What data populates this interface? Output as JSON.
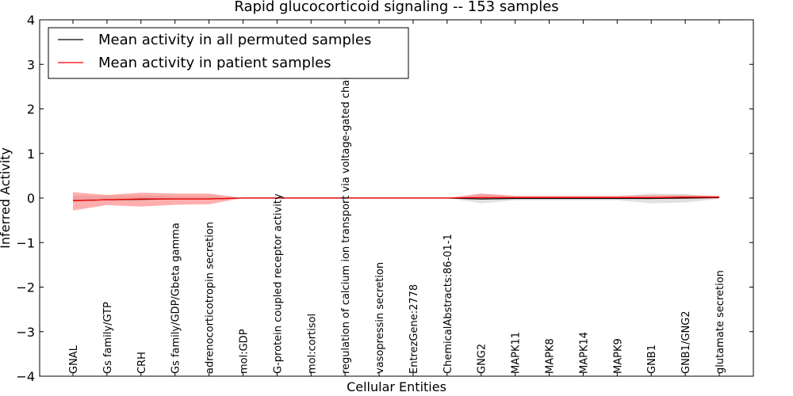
{
  "chart_data": {
    "type": "line",
    "title": "Rapid glucocorticoid signaling -- 153 samples",
    "xlabel": "Cellular Entities",
    "ylabel": "Inferred Activity",
    "ylim": [
      -4,
      4
    ],
    "yticks": [
      "−4",
      "−3",
      "−2",
      "−1",
      "0",
      "1",
      "2",
      "3",
      "4"
    ],
    "ytick_values": [
      -4,
      -3,
      -2,
      -1,
      0,
      1,
      2,
      3,
      4
    ],
    "grid": false,
    "legend_position": "top-left",
    "categories": [
      "GNAL",
      "Gs family/GTP",
      "CRH",
      "Gs family/GDP/Gbeta gamma",
      "adrenocorticotropin secretion",
      "mol:GDP",
      "G-protein coupled receptor activity",
      "mol:cortisol",
      "regulation of calcium ion transport via voltage-gated channel",
      "vasopressin secretion",
      "EntrezGene:2778",
      "ChemicalAbstracts:86-01-1",
      "GNG2",
      "MAPK11",
      "MAPK8",
      "MAPK14",
      "MAPK9",
      "GNB1",
      "GNB1/GNG2",
      "glutamate secretion"
    ],
    "series": [
      {
        "name": "Mean activity in all permuted samples",
        "color": "#000000",
        "values": [
          -0.06,
          -0.04,
          -0.03,
          -0.02,
          -0.02,
          0,
          0,
          0,
          0,
          0,
          0,
          0,
          -0.02,
          -0.01,
          -0.01,
          -0.01,
          -0.01,
          -0.01,
          0,
          0.01
        ],
        "band_lower": [
          -0.08,
          -0.05,
          -0.04,
          -0.03,
          -0.02,
          0,
          0,
          0,
          0,
          0,
          0,
          0,
          -0.12,
          -0.05,
          -0.05,
          -0.05,
          -0.05,
          -0.12,
          -0.1,
          -0.02
        ],
        "band_upper": [
          0.05,
          0.05,
          0.06,
          0.04,
          0.04,
          0,
          0,
          0,
          0,
          0,
          0,
          0,
          0.08,
          0.04,
          0.04,
          0.04,
          0.04,
          0.1,
          0.09,
          0.03
        ],
        "band_color": "#c8c8c8"
      },
      {
        "name": "Mean activity in patient samples",
        "color": "#ff0000",
        "values": [
          -0.06,
          -0.04,
          -0.02,
          -0.02,
          -0.02,
          0,
          0,
          0,
          0,
          0,
          0,
          0,
          0.01,
          0.01,
          0.01,
          0.01,
          0.01,
          0.01,
          0.02,
          0.02
        ],
        "band_lower": [
          -0.28,
          -0.16,
          -0.19,
          -0.15,
          -0.14,
          0,
          0,
          0,
          0,
          0,
          0,
          0,
          -0.03,
          -0.01,
          -0.01,
          -0.01,
          -0.01,
          -0.02,
          -0.02,
          -0.01
        ],
        "band_upper": [
          0.13,
          0.07,
          0.12,
          0.1,
          0.1,
          0,
          0,
          0,
          0,
          0,
          0,
          0,
          0.1,
          0.05,
          0.05,
          0.05,
          0.05,
          0.06,
          0.06,
          0.05
        ],
        "band_color": "#ff6a6a"
      }
    ]
  }
}
